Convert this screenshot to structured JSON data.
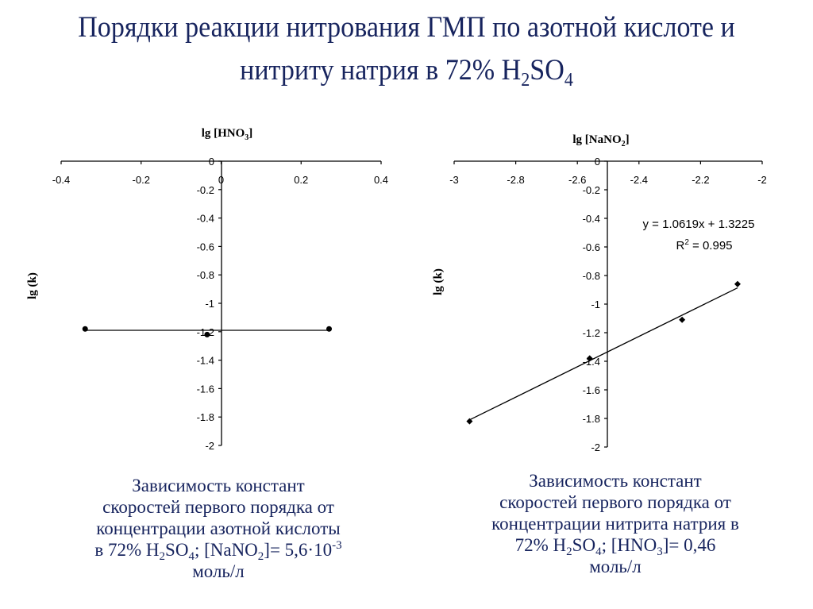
{
  "slide": {
    "title_line1": "Порядки реакции нитрования ГМП по азотной кислоте и",
    "title_line2_pre": "нитриту натрия в 72% H",
    "title_line2_sub1": "2",
    "title_line2_mid": "SO",
    "title_line2_sub2": "4",
    "text_color": "#17245e"
  },
  "left_caption": {
    "line1": "Зависимость констант",
    "line2": "скоростей первого порядка от",
    "line3": "концентрации азотной кислоты",
    "line4_pre": "в 72% H",
    "line4_sub1": "2",
    "line4_mid1": "SO",
    "line4_sub2": "4",
    "line4_mid2": "; [NaNO",
    "line4_sub3": "2",
    "line4_mid3": "]= 5,6·10",
    "line4_sup": "-3",
    "line5": "моль/л"
  },
  "right_caption": {
    "line1": "Зависимость констант",
    "line2": "скоростей первого порядка от",
    "line3": "концентрации нитрита натрия в",
    "line4_pre": "72% H",
    "line4_sub1": "2",
    "line4_mid1": "SO",
    "line4_sub2": "4",
    "line4_mid2": "; [HNO",
    "line4_sub3": "3",
    "line4_mid3": "]= 0,46",
    "line5": "моль/л"
  },
  "chart_data": [
    {
      "type": "scatter",
      "title": "",
      "xlabel": "lg [HNO3]",
      "xlabel_main": "lg [HNO",
      "xlabel_sub": "3",
      "xlabel_end": "]",
      "ylabel": "lg (k)",
      "xlim": [
        -0.4,
        0.4
      ],
      "ylim": [
        -2,
        0
      ],
      "x_ticks": [
        "-0.4",
        "-0.2",
        "0",
        "0.2",
        "0.4"
      ],
      "y_ticks": [
        "0",
        "-0.2",
        "-0.4",
        "-0.6",
        "-0.8",
        "-1",
        "-1.2",
        "-1.4",
        "-1.6",
        "-1.8",
        "-2"
      ],
      "grid": false,
      "marker": "circle",
      "series": [
        {
          "name": "lg k vs lg [HNO3]",
          "x": [
            -0.34,
            -0.035,
            0.27
          ],
          "y": [
            -1.18,
            -1.22,
            -1.18
          ]
        }
      ],
      "trendline": {
        "type": "linear",
        "x": [
          -0.34,
          0.27
        ],
        "y": [
          -1.19,
          -1.19
        ]
      }
    },
    {
      "type": "scatter",
      "title": "",
      "xlabel": "lg [NaNO2]",
      "xlabel_main": "lg [NaNO",
      "xlabel_sub": "2",
      "xlabel_end": "]",
      "ylabel": "lg (k)",
      "xlim": [
        -3,
        -2
      ],
      "ylim": [
        -2,
        0
      ],
      "x_ticks": [
        "-3",
        "-2.8",
        "-2.6",
        "-2.4",
        "-2.2",
        "-2"
      ],
      "y_ticks": [
        "0",
        "-0.2",
        "-0.4",
        "-0.6",
        "-0.8",
        "-1",
        "-1.2",
        "-1.4",
        "-1.6",
        "-1.8",
        "-2"
      ],
      "grid": false,
      "marker": "diamond",
      "series": [
        {
          "name": "lg k vs lg [NaNO2]",
          "x": [
            -2.95,
            -2.56,
            -2.26,
            -2.08
          ],
          "y": [
            -1.82,
            -1.38,
            -1.11,
            -0.86
          ]
        }
      ],
      "trendline": {
        "type": "linear",
        "equation": "y = 1.0619x + 1.3225",
        "r2_label": "R",
        "r2_sup": "2",
        "r2_value": " = 0.995",
        "slope": 1.0619,
        "intercept": 1.3225,
        "r2": 0.995
      }
    }
  ]
}
